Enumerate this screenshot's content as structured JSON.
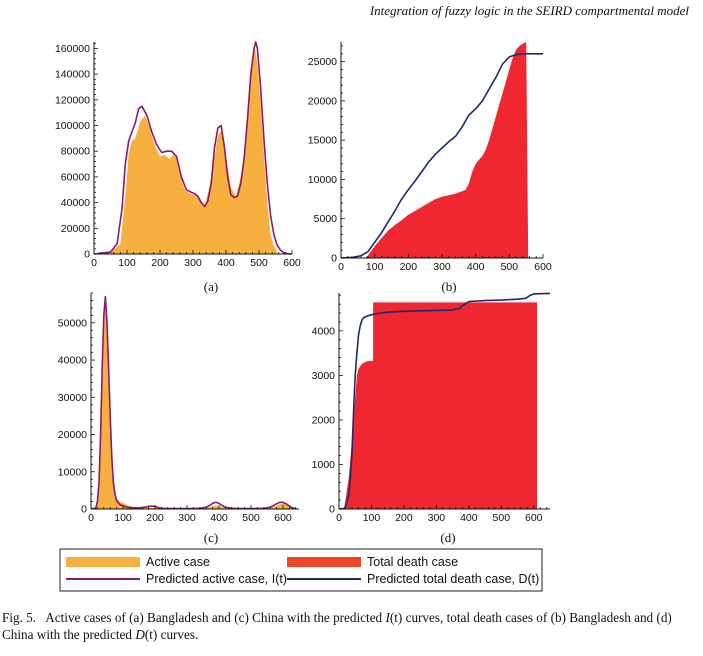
{
  "running_head": "Integration of fuzzy logic in the SEIRD compartmental model",
  "caption": {
    "label": "Fig. 5.",
    "p1": "Active cases of (a) Bangladesh and (c) China with the predicted ",
    "sym1": "I",
    "p2": "(t) curves, total death cases of (b) Bangladesh and (d) China with the predicted ",
    "sym2": "D",
    "p3": "(t) curves."
  },
  "legend": {
    "active": "Active case",
    "death": "Total death case",
    "pred_active": "Predicted active case, I(t)",
    "pred_death": "Predicted total death case, D(t)"
  },
  "colors": {
    "active_fill": "#F7B040",
    "death_fill": "#EE2730",
    "pred_active": "#8A1A6E",
    "pred_death": "#1E2A6B",
    "legend_death": "#EE4428"
  },
  "chart_data": [
    {
      "panel": "(a)",
      "type": "area",
      "xlim": [
        0,
        600
      ],
      "ylim": [
        0,
        165000
      ],
      "xticks": [
        0,
        100,
        200,
        300,
        400,
        500,
        600
      ],
      "yticks": [
        0,
        20000,
        40000,
        60000,
        80000,
        100000,
        120000,
        140000,
        160000
      ],
      "series": [
        {
          "kind": "area",
          "x": [
            0,
            50,
            80,
            95,
            105,
            115,
            125,
            140,
            155,
            170,
            185,
            200,
            215,
            230,
            245,
            260,
            275,
            290,
            305,
            320,
            335,
            350,
            365,
            375,
            385,
            400,
            415,
            430,
            445,
            460,
            470,
            480,
            488,
            495,
            505,
            515,
            525,
            535,
            545,
            555,
            556
          ],
          "values": [
            0,
            1000,
            8000,
            45000,
            78000,
            88000,
            90000,
            103000,
            108000,
            97000,
            84000,
            76000,
            77000,
            74000,
            78000,
            62000,
            50000,
            47000,
            46000,
            43000,
            38000,
            52000,
            75000,
            92000,
            96000,
            76000,
            52000,
            45000,
            60000,
            90000,
            120000,
            150000,
            160000,
            148000,
            118000,
            78000,
            40000,
            15000,
            6000,
            2000,
            0
          ]
        },
        {
          "kind": "line",
          "x": [
            0,
            50,
            70,
            85,
            95,
            105,
            115,
            125,
            135,
            145,
            160,
            175,
            190,
            205,
            220,
            235,
            250,
            265,
            280,
            295,
            305,
            315,
            325,
            335,
            345,
            355,
            365,
            375,
            385,
            395,
            405,
            415,
            425,
            435,
            445,
            455,
            465,
            475,
            485,
            490,
            495,
            505,
            515,
            525,
            535,
            545,
            555,
            565,
            575,
            585,
            595,
            600
          ],
          "values": [
            0,
            1500,
            8000,
            35000,
            70000,
            88000,
            95000,
            102000,
            113000,
            115000,
            108000,
            95000,
            85000,
            79000,
            80000,
            80000,
            76000,
            60000,
            50000,
            48000,
            47000,
            45000,
            40000,
            37000,
            41000,
            55000,
            82000,
            98000,
            100000,
            84000,
            60000,
            46000,
            44000,
            45000,
            55000,
            75000,
            105000,
            140000,
            160000,
            165000,
            160000,
            130000,
            90000,
            55000,
            30000,
            15000,
            7000,
            3000,
            1000,
            300,
            100,
            0
          ]
        }
      ]
    },
    {
      "panel": "(b)",
      "type": "area",
      "xlim": [
        0,
        600
      ],
      "ylim": [
        0,
        27500
      ],
      "xticks": [
        0,
        100,
        200,
        300,
        400,
        500,
        600
      ],
      "yticks": [
        0,
        5000,
        10000,
        15000,
        20000,
        25000
      ],
      "series": [
        {
          "kind": "area",
          "x": [
            0,
            70,
            80,
            90,
            100,
            120,
            140,
            160,
            180,
            200,
            220,
            240,
            260,
            280,
            300,
            320,
            340,
            360,
            370,
            380,
            390,
            400,
            410,
            420,
            430,
            440,
            450,
            460,
            470,
            480,
            490,
            500,
            510,
            520,
            530,
            540,
            550,
            556
          ],
          "values": [
            0,
            0,
            300,
            900,
            1500,
            2500,
            3500,
            4200,
            4800,
            5500,
            6000,
            6500,
            7000,
            7500,
            7800,
            8000,
            8200,
            8500,
            8700,
            9500,
            11000,
            12000,
            12500,
            13000,
            13800,
            15000,
            16500,
            18000,
            19500,
            21000,
            22500,
            24000,
            25500,
            26500,
            27000,
            27300,
            27500,
            0
          ]
        },
        {
          "kind": "line",
          "x": [
            0,
            40,
            60,
            80,
            100,
            120,
            140,
            160,
            180,
            200,
            220,
            240,
            260,
            280,
            300,
            320,
            340,
            360,
            380,
            400,
            420,
            440,
            460,
            480,
            500,
            520,
            540,
            560,
            580,
            600
          ],
          "values": [
            0,
            100,
            300,
            800,
            2000,
            3200,
            4600,
            6000,
            7500,
            8700,
            9800,
            11000,
            12200,
            13200,
            14000,
            14800,
            15500,
            16700,
            18200,
            19000,
            20000,
            21500,
            23000,
            24700,
            25600,
            25900,
            26000,
            26000,
            26000,
            26000
          ]
        }
      ]
    },
    {
      "panel": "(c)",
      "type": "area",
      "xlim": [
        0,
        650
      ],
      "ylim": [
        0,
        58000
      ],
      "xticks": [
        0,
        100,
        200,
        300,
        400,
        500,
        600
      ],
      "yticks": [
        0,
        10000,
        20000,
        30000,
        40000,
        50000
      ],
      "series": [
        {
          "kind": "area",
          "x": [
            0,
            15,
            20,
            25,
            30,
            35,
            40,
            45,
            50,
            55,
            60,
            65,
            70,
            75,
            80,
            85,
            90,
            100,
            110,
            120,
            140,
            160,
            180,
            200,
            220,
            240,
            260,
            280,
            300,
            320,
            340,
            360,
            370,
            380,
            390,
            400,
            410,
            420,
            440,
            460,
            480,
            500,
            520,
            540,
            560,
            570,
            580,
            590,
            600,
            610,
            620,
            630,
            640
          ],
          "values": [
            0,
            300,
            1500,
            6000,
            20000,
            38000,
            50000,
            56000,
            52000,
            38000,
            22000,
            11000,
            6000,
            4000,
            3000,
            2500,
            2000,
            1600,
            1200,
            800,
            500,
            400,
            300,
            300,
            200,
            200,
            200,
            200,
            200,
            200,
            200,
            300,
            500,
            700,
            900,
            800,
            500,
            300,
            200,
            200,
            200,
            200,
            200,
            200,
            300,
            500,
            900,
            1300,
            1500,
            1100,
            600,
            200,
            0
          ]
        },
        {
          "kind": "line",
          "x": [
            0,
            15,
            20,
            25,
            30,
            35,
            40,
            45,
            50,
            55,
            60,
            65,
            70,
            75,
            80,
            90,
            100,
            110,
            120,
            140,
            160,
            180,
            190,
            200,
            210,
            220,
            240,
            260,
            280,
            300,
            320,
            340,
            360,
            370,
            380,
            390,
            400,
            410,
            420,
            440,
            460,
            480,
            500,
            520,
            540,
            560,
            570,
            580,
            590,
            600,
            610,
            620,
            630,
            640
          ],
          "values": [
            0,
            300,
            2000,
            7000,
            20000,
            38000,
            52000,
            57000,
            50000,
            38000,
            25000,
            14000,
            7000,
            4000,
            2200,
            1200,
            800,
            500,
            400,
            300,
            400,
            700,
            800,
            700,
            400,
            200,
            100,
            100,
            100,
            100,
            100,
            200,
            500,
            900,
            1500,
            1800,
            1500,
            900,
            500,
            200,
            100,
            100,
            100,
            100,
            200,
            500,
            900,
            1400,
            1800,
            1800,
            1400,
            800,
            300,
            100
          ]
        }
      ]
    },
    {
      "panel": "(d)",
      "type": "area",
      "xlim": [
        0,
        650
      ],
      "ylim": [
        0,
        4850
      ],
      "xticks": [
        0,
        100,
        200,
        300,
        400,
        500,
        600
      ],
      "yticks": [
        0,
        1000,
        2000,
        3000,
        4000
      ],
      "series": [
        {
          "kind": "area",
          "x": [
            0,
            15,
            20,
            30,
            40,
            50,
            55,
            60,
            65,
            70,
            80,
            90,
            100,
            105,
            105,
            610,
            610
          ],
          "values": [
            0,
            0,
            200,
            700,
            1500,
            2500,
            3000,
            3150,
            3200,
            3250,
            3300,
            3320,
            3330,
            3330,
            4640,
            4640,
            0
          ]
        },
        {
          "kind": "line",
          "x": [
            0,
            15,
            20,
            30,
            35,
            40,
            45,
            50,
            55,
            60,
            65,
            70,
            75,
            80,
            90,
            100,
            110,
            130,
            150,
            200,
            250,
            300,
            350,
            370,
            380,
            400,
            450,
            500,
            550,
            575,
            590,
            600,
            620,
            650
          ],
          "values": [
            0,
            10,
            50,
            300,
            700,
            1300,
            2200,
            3000,
            3500,
            3900,
            4100,
            4230,
            4290,
            4310,
            4340,
            4360,
            4380,
            4400,
            4420,
            4440,
            4450,
            4460,
            4470,
            4500,
            4560,
            4660,
            4680,
            4690,
            4710,
            4730,
            4800,
            4830,
            4835,
            4840
          ]
        }
      ]
    }
  ]
}
